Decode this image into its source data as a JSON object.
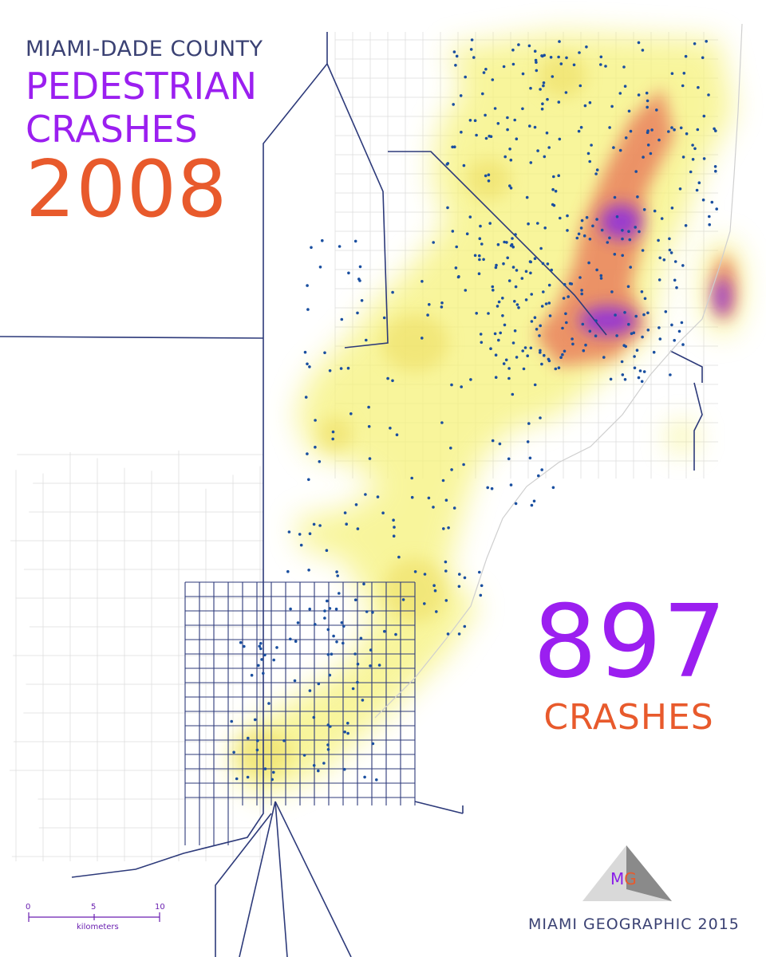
{
  "title": {
    "line1": "MIAMI-DADE COUNTY",
    "line2": "PEDESTRIAN",
    "line3": "CRASHES",
    "year": "2008"
  },
  "summary": {
    "count": "897",
    "label": "CRASHES"
  },
  "credit": "MIAMI GEOGRAPHIC 2015",
  "logo": {
    "m": "M",
    "g": "G"
  },
  "scale_bar": {
    "ticks": [
      "0",
      "5",
      "10"
    ],
    "unit": "kilometers"
  },
  "colors": {
    "roads": "#2d3a7a",
    "heat_low": "#f6f27a",
    "heat_mid": "#e87a5a",
    "heat_high": "#8a2be2",
    "title_accent": "#9b1ff0",
    "year_accent": "#e85a2c"
  }
}
